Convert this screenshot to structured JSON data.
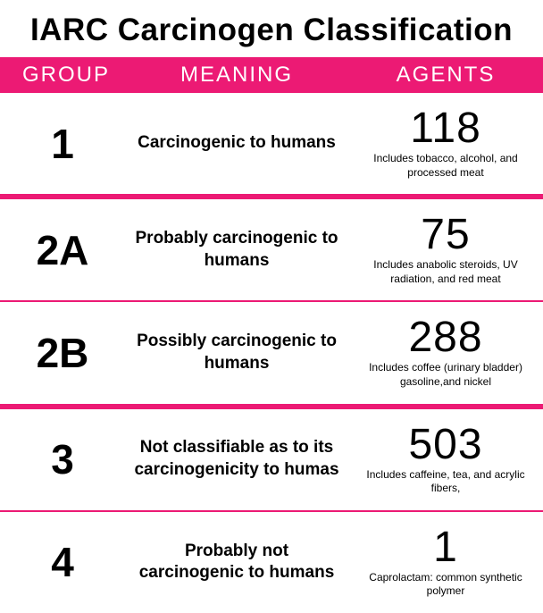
{
  "title": "IARC Carcinogen Classification",
  "colors": {
    "accent": "#ec1a74",
    "text": "#000000",
    "header_text": "#ffffff",
    "background": "#ffffff"
  },
  "columns": {
    "group": "GROUP",
    "meaning": "MEANING",
    "agents": "AGENTS"
  },
  "rows": [
    {
      "group": "1",
      "meaning": "Carcinogenic to humans",
      "agents_count": "118",
      "agents_desc": "Includes tobacco, alcohol, and processed meat"
    },
    {
      "group": "2A",
      "meaning": "Probably carcinogenic to humans",
      "agents_count": "75",
      "agents_desc": "Includes anabolic steroids, UV radiation, and red meat"
    },
    {
      "group": "2B",
      "meaning": "Possibly carcinogenic to humans",
      "agents_count": "288",
      "agents_desc": "Includes coffee (urinary bladder) gasoline,and nickel"
    },
    {
      "group": "3",
      "meaning": "Not classifiable as to its carcinogenicity to humas",
      "agents_count": "503",
      "agents_desc": "Includes caffeine, tea, and acrylic fibers,"
    },
    {
      "group": "4",
      "meaning": "Probably not carcinogenic to humans",
      "agents_count": "1",
      "agents_desc": "Caprolactam: common synthetic polymer"
    }
  ]
}
